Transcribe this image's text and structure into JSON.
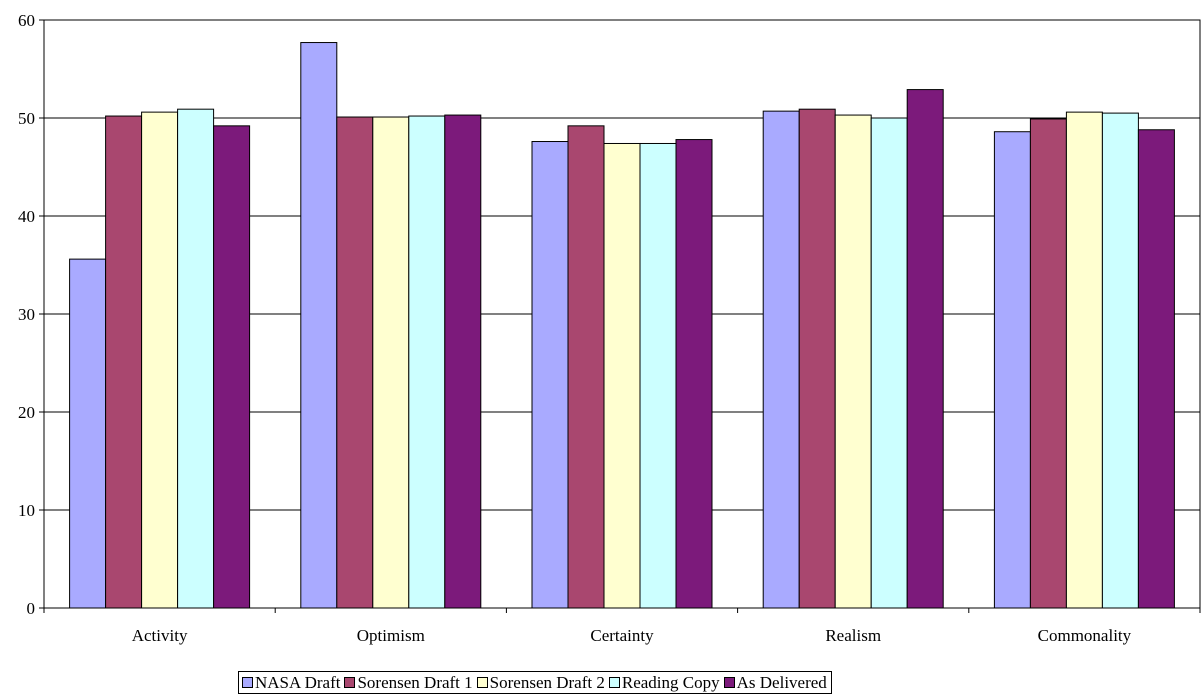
{
  "chart_data": {
    "type": "bar",
    "categories": [
      "Activity",
      "Optimism",
      "Certainty",
      "Realism",
      "Commonality"
    ],
    "series": [
      {
        "name": "NASA Draft",
        "color": "#a9aaff",
        "values": [
          35.6,
          57.7,
          47.6,
          50.7,
          48.6
        ]
      },
      {
        "name": "Sorensen Draft 1",
        "color": "#a9476f",
        "values": [
          50.2,
          50.1,
          49.2,
          50.9,
          49.9
        ]
      },
      {
        "name": "Sorensen Draft 2",
        "color": "#ffffd0",
        "values": [
          50.6,
          50.1,
          47.4,
          50.3,
          50.6
        ]
      },
      {
        "name": "Reading Copy",
        "color": "#ccffff",
        "values": [
          50.9,
          50.2,
          47.4,
          50.0,
          50.5
        ]
      },
      {
        "name": "As Delivered",
        "color": "#7c1a7b",
        "values": [
          49.2,
          50.3,
          47.8,
          52.9,
          48.8
        ]
      }
    ],
    "yticks": [
      "0",
      "10",
      "20",
      "30",
      "40",
      "50",
      "60"
    ],
    "ylim": [
      0,
      60
    ],
    "grid": true,
    "legend_position": "bottom"
  }
}
